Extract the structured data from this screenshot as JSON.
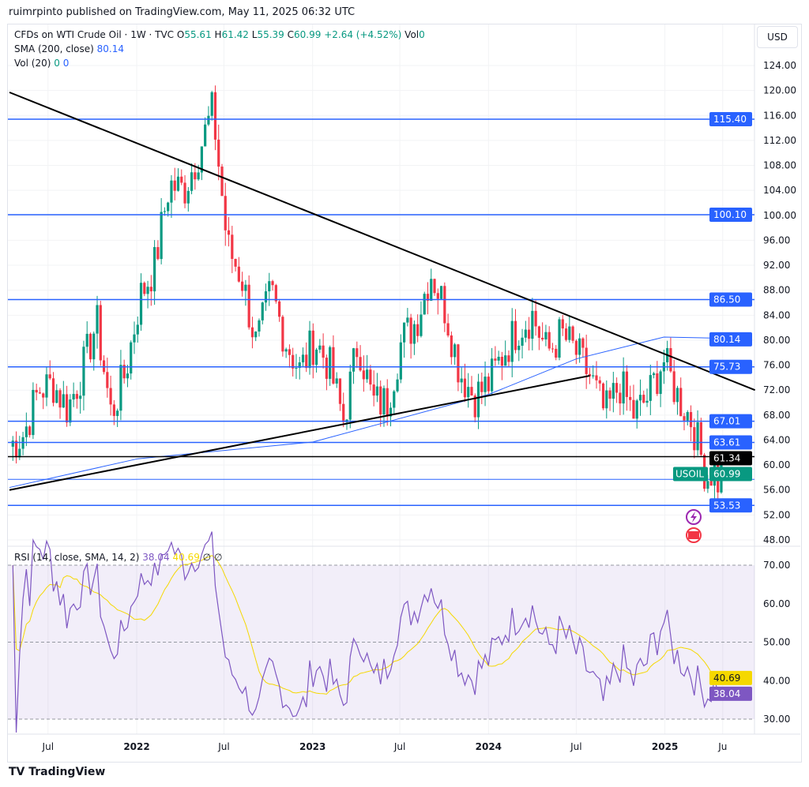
{
  "header": {
    "published": "ruimrpinto published on TradingView.com, May 11, 2025 06:32 UTC",
    "symbol": "CFDs on WTI Crude Oil · 1W · TVC",
    "o_label": "O",
    "o": "55.61",
    "h_label": "H",
    "h": "61.42",
    "l_label": "L",
    "l": "55.39",
    "c_label": "C",
    "c": "60.99",
    "change": "+2.64 (+4.52%)",
    "vol_label": "Vol",
    "vol": "0",
    "sma_label": "SMA (200, close)",
    "sma": "80.14",
    "vol20_label": "Vol (20)",
    "vol20_a": "0",
    "vol20_b": "0",
    "currency": "USD"
  },
  "rsi_legend": {
    "label": "RSI (14, close, SMA, 14, 2)",
    "rsi": "38.04",
    "sma": "40.69",
    "x1": "∅",
    "x2": "∅"
  },
  "footer": {
    "brand": "TradingView"
  },
  "chart_data": {
    "type": "candlestick",
    "title": "CFDs on WTI Crude Oil · 1W · TVC",
    "start": "2021-04-12",
    "interval": "1W",
    "monthly_close_approx": [
      63,
      65,
      72,
      73,
      69,
      75,
      83,
      68,
      75,
      87,
      92,
      105,
      104,
      110,
      117,
      95,
      90,
      79,
      88,
      80,
      75,
      80,
      76,
      67,
      80,
      70,
      70,
      80,
      83,
      91,
      85,
      75,
      71,
      73,
      78,
      82,
      84,
      78,
      81,
      78,
      74,
      68,
      73,
      68,
      71,
      77,
      71,
      67,
      58,
      61
    ],
    "last_candle": {
      "open": 55.61,
      "high": 61.42,
      "low": 55.39,
      "close": 60.99
    },
    "sma200_points": [
      [
        0,
        56.4
      ],
      [
        38,
        61
      ],
      [
        90,
        63.7
      ],
      [
        116,
        67.5
      ],
      [
        142,
        71.3
      ],
      [
        168,
        77
      ],
      [
        194,
        80.5
      ],
      [
        212,
        80.3
      ]
    ],
    "trendlines": [
      {
        "from": [
          0,
          119.7
        ],
        "to": [
          221,
          72
        ]
      },
      {
        "from": [
          0,
          56
        ],
        "to": [
          172,
          74.3
        ]
      }
    ],
    "levels": [
      {
        "price": 115.4,
        "label": "115.40"
      },
      {
        "price": 100.1,
        "label": "100.10"
      },
      {
        "price": 86.5,
        "label": "86.50"
      },
      {
        "price": 75.73,
        "label": "75.73"
      },
      {
        "price": 67.01,
        "label": "67.01"
      },
      {
        "price": 63.61,
        "label": "63.61"
      },
      {
        "price": 57.7,
        "label": ""
      },
      {
        "price": 53.53,
        "label": "53.53"
      }
    ],
    "black_level": {
      "price": 61.34,
      "label": "61.34"
    },
    "sma_label": {
      "price": 80.14,
      "label": "80.14"
    },
    "current": {
      "price": 60.99,
      "label": "60.99",
      "symbol": "USOIL"
    },
    "y_ticks": [
      "124.00",
      "120.00",
      "116.00",
      "112.00",
      "108.00",
      "104.00",
      "100.00",
      "96.00",
      "92.00",
      "88.00",
      "84.00",
      "80.00",
      "76.00",
      "72.00",
      "68.00",
      "64.00",
      "60.00",
      "56.00",
      "52.00",
      "48.00"
    ],
    "ylim": [
      48,
      124
    ],
    "rsi": {
      "ticks": [
        "70.00",
        "60.00",
        "50.00",
        "40.00",
        "30.00"
      ],
      "ylim": [
        30,
        70
      ],
      "value": 38.04,
      "sma": 40.69,
      "rsi_label": "38.04",
      "sma_label": "40.69"
    },
    "x_ticks": [
      {
        "label": "Jul",
        "date": "2021-07-01"
      },
      {
        "label": "2022",
        "date": "2022-01-01"
      },
      {
        "label": "Jul",
        "date": "2022-07-01"
      },
      {
        "label": "2023",
        "date": "2023-01-01"
      },
      {
        "label": "Jul",
        "date": "2023-07-01"
      },
      {
        "label": "2024",
        "date": "2024-01-01"
      },
      {
        "label": "Jul",
        "date": "2024-07-01"
      },
      {
        "label": "2025",
        "date": "2025-01-01"
      },
      {
        "label": "Ju",
        "date": "2025-05-01"
      }
    ]
  }
}
